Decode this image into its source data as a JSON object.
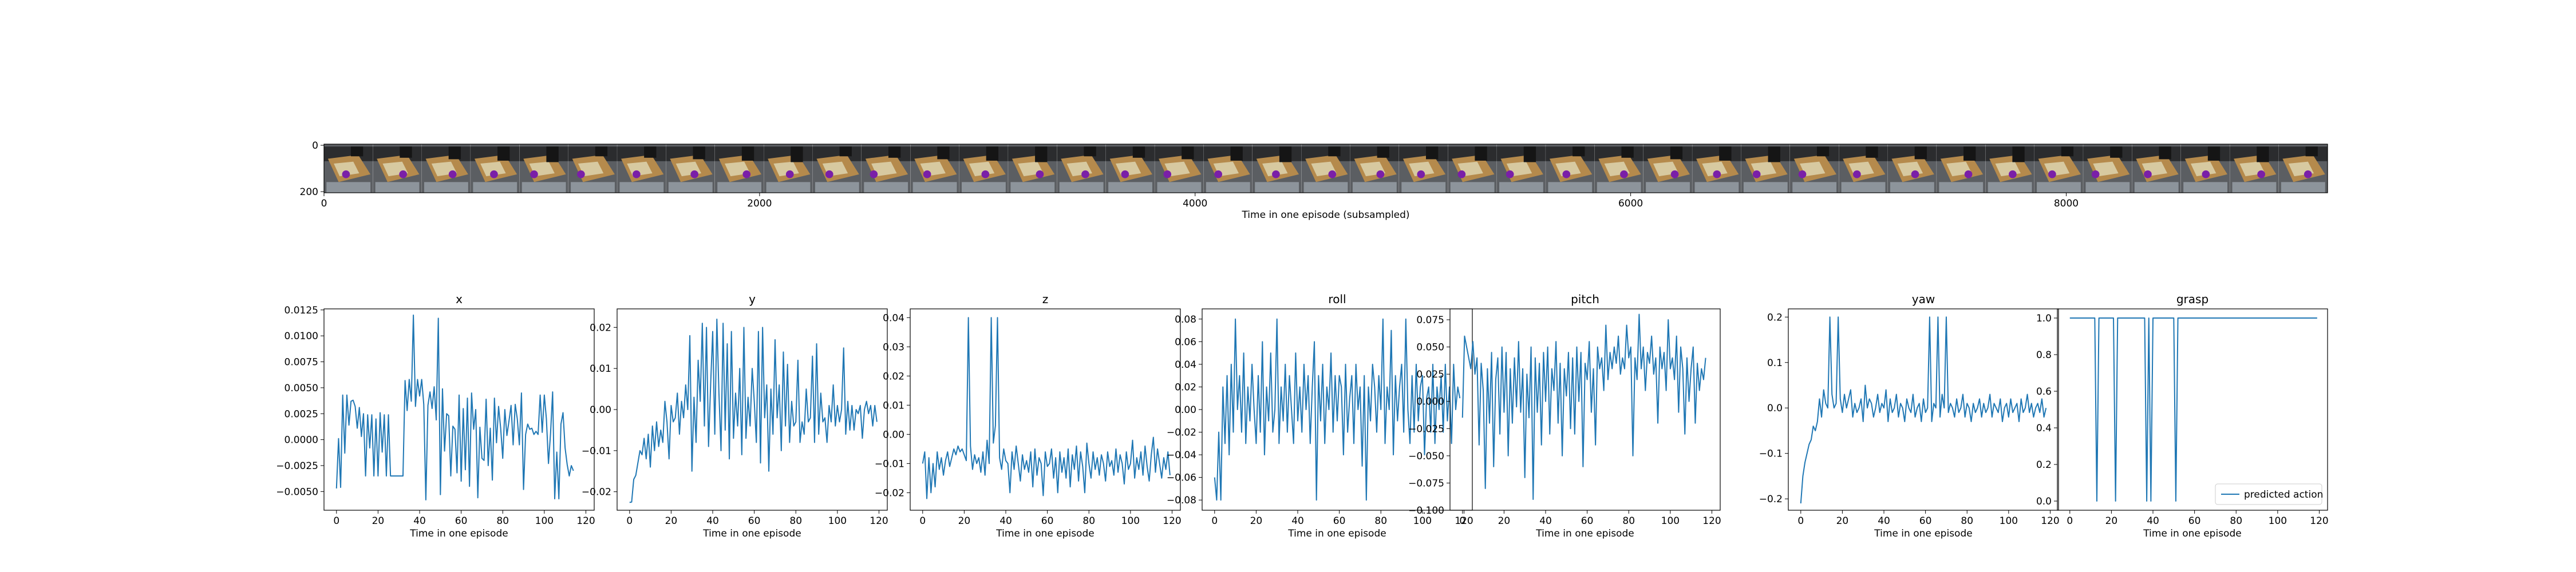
{
  "filmstrip": {
    "xlabel": "Time in one episode (subsampled)",
    "x_ticks": [
      "0",
      "2000",
      "4000",
      "6000",
      "8000"
    ],
    "y_ticks": [
      "0",
      "200"
    ],
    "frame_count": 41
  },
  "legend_label": "predicted action",
  "common_xlabel": "Time in one episode",
  "colors": {
    "line": "#1f77b4",
    "axes": "#000000"
  },
  "chart_data": [
    {
      "type": "line",
      "title": "x",
      "xlabel": "Time in one episode",
      "xlim": [
        -6,
        124
      ],
      "ylim": [
        -0.0068,
        0.0126
      ],
      "x_ticks": [
        "0",
        "20",
        "40",
        "60",
        "80",
        "100",
        "120"
      ],
      "y_ticks": [
        "−0.0050",
        "−0.0025",
        "0.0000",
        "0.0025",
        "0.0050",
        "0.0075",
        "0.0100",
        "0.0125"
      ],
      "series": [
        {
          "values": [
            -0.0047,
            0.0001,
            -0.0046,
            0.0043,
            -0.0013,
            0.0043,
            0.0014,
            0.0037,
            0.0038,
            0.0032,
            0.0011,
            0.0031,
            0.0003,
            0.0025,
            -0.0035,
            0.0024,
            -0.0008,
            0.0024,
            -0.0035,
            0.002,
            -0.0035,
            0.0026,
            -0.0012,
            0.0024,
            -0.0035,
            0.0024,
            -0.0035,
            -0.0035,
            -0.0035,
            -0.0035,
            -0.0035,
            -0.0035,
            -0.0035,
            0.0057,
            0.0028,
            0.0058,
            0.0037,
            0.012,
            0.0032,
            0.0058,
            0.0042,
            0.0058,
            0.0034,
            -0.0058,
            0.0033,
            0.0046,
            0.003,
            0.0051,
            0.0019,
            0.0117,
            -0.0053,
            0.0049,
            -0.0011,
            0.0025,
            0.0023,
            -0.0035,
            0.0013,
            0.001,
            -0.0032,
            0.0043,
            -0.004,
            0.003,
            -0.0029,
            0.004,
            -0.0045,
            0.0045,
            0.001,
            0.0029,
            -0.0056,
            0.0012,
            -0.0018,
            -0.002,
            0.0039,
            -0.0025,
            0.0011,
            -0.0039,
            0.004,
            -0.0003,
            0.0032,
            0.0011,
            -0.0018,
            0.0029,
            0.0004,
            0.0018,
            0.0033,
            -0.0005,
            0.0034,
            0.002,
            -0.0005,
            0.0045,
            -0.0048,
            0.0005,
            0.0015,
            0.001,
            0.0011,
            0.0005,
            0.0008,
            0.0005,
            0.0043,
            0.0007,
            0.0043,
            0.002,
            -0.0023,
            0.0006,
            0.0046,
            -0.0057,
            -0.0012,
            -0.0057,
            0.0015,
            0.0026,
            -0.0008,
            -0.0024,
            -0.0035,
            -0.0025,
            -0.003
          ]
        }
      ]
    },
    {
      "type": "line",
      "title": "y",
      "xlabel": "Time in one episode",
      "xlim": [
        -6,
        124
      ],
      "ylim": [
        -0.0245,
        0.0245
      ],
      "x_ticks": [
        "0",
        "20",
        "40",
        "60",
        "80",
        "100",
        "120"
      ],
      "y_ticks": [
        "−0.02",
        "−0.01",
        "0.00",
        "0.01",
        "0.02"
      ],
      "series": [
        {
          "values": [
            -0.0226,
            -0.0225,
            -0.017,
            -0.016,
            -0.013,
            -0.01,
            -0.011,
            -0.007,
            -0.012,
            -0.006,
            -0.014,
            -0.004,
            -0.01,
            -0.003,
            -0.009,
            -0.005,
            -0.008,
            0.002,
            -0.003,
            -0.012,
            0.001,
            -0.003,
            -0.002,
            0.004,
            -0.006,
            0.002,
            -0.002,
            0.006,
            0.0,
            0.018,
            -0.015,
            0.003,
            -0.008,
            0.012,
            0.002,
            0.021,
            -0.004,
            0.02,
            -0.009,
            0.006,
            0.019,
            -0.006,
            0.022,
            0.004,
            -0.01,
            0.021,
            -0.005,
            0.016,
            -0.012,
            0.019,
            -0.007,
            0.004,
            -0.004,
            0.01,
            -0.011,
            0.02,
            -0.007,
            0.003,
            -0.004,
            0.01,
            0.002,
            -0.008,
            0.019,
            -0.013,
            0.02,
            -0.002,
            0.006,
            -0.015,
            0.005,
            -0.006,
            0.017,
            -0.002,
            0.006,
            -0.01,
            0.014,
            -0.004,
            0.011,
            -0.008,
            0.002,
            -0.004,
            -0.003,
            0.012,
            -0.008,
            -0.003,
            -0.006,
            0.005,
            -0.003,
            -0.002,
            0.013,
            -0.008,
            0.016,
            -0.006,
            0.004,
            -0.003,
            -0.002,
            -0.008,
            0.001,
            -0.003,
            0.006,
            -0.004,
            0.001,
            -0.003,
            0.0,
            0.015,
            -0.006,
            0.002,
            -0.005,
            0.001,
            -0.005,
            0.0,
            -0.001,
            0.001,
            -0.007,
            0.0,
            0.002,
            -0.001,
            0.001,
            -0.004,
            0.001,
            -0.003
          ]
        }
      ]
    },
    {
      "type": "line",
      "title": "z",
      "xlabel": "Time in one episode",
      "xlim": [
        -6,
        124
      ],
      "ylim": [
        -0.026,
        0.043
      ],
      "x_ticks": [
        "0",
        "20",
        "40",
        "60",
        "80",
        "100",
        "120"
      ],
      "y_ticks": [
        "−0.02",
        "−0.01",
        "0.00",
        "0.01",
        "0.02",
        "0.03",
        "0.04"
      ],
      "series": [
        {
          "values": [
            -0.01,
            -0.006,
            -0.022,
            -0.008,
            -0.02,
            -0.01,
            -0.018,
            -0.006,
            -0.012,
            -0.008,
            -0.014,
            -0.009,
            -0.006,
            -0.011,
            -0.008,
            -0.005,
            -0.007,
            -0.004,
            -0.006,
            -0.005,
            -0.007,
            -0.009,
            0.04,
            -0.004,
            -0.012,
            -0.007,
            -0.01,
            -0.008,
            -0.013,
            -0.006,
            -0.014,
            -0.002,
            -0.01,
            0.04,
            -0.003,
            0.003,
            0.04,
            -0.008,
            -0.012,
            -0.005,
            -0.009,
            -0.01,
            -0.02,
            -0.006,
            -0.012,
            -0.004,
            -0.01,
            -0.016,
            -0.007,
            -0.012,
            -0.009,
            -0.013,
            -0.006,
            -0.018,
            -0.005,
            -0.014,
            -0.008,
            -0.01,
            -0.021,
            -0.006,
            -0.011,
            -0.01,
            -0.005,
            -0.015,
            -0.008,
            -0.02,
            -0.006,
            -0.013,
            -0.008,
            -0.015,
            -0.005,
            -0.018,
            -0.007,
            -0.012,
            -0.004,
            -0.016,
            -0.006,
            -0.011,
            -0.02,
            -0.003,
            -0.01,
            -0.015,
            -0.006,
            -0.012,
            -0.008,
            -0.014,
            -0.007,
            -0.01,
            -0.016,
            -0.006,
            -0.011,
            -0.009,
            -0.014,
            -0.005,
            -0.013,
            -0.007,
            -0.01,
            -0.017,
            -0.006,
            -0.012,
            -0.01,
            -0.002,
            -0.015,
            -0.008,
            -0.012,
            -0.006,
            -0.014,
            -0.004,
            -0.011,
            -0.016,
            -0.007,
            -0.001,
            -0.013,
            -0.005,
            -0.01,
            -0.015,
            -0.008,
            -0.012,
            -0.006,
            -0.014
          ]
        }
      ]
    },
    {
      "type": "line",
      "title": "roll",
      "xlabel": "Time in one episode",
      "xlim": [
        -6,
        124
      ],
      "ylim": [
        -0.089,
        0.089
      ],
      "x_ticks": [
        "0",
        "20",
        "40",
        "60",
        "80",
        "100",
        "120"
      ],
      "y_ticks": [
        "−0.08",
        "−0.06",
        "−0.04",
        "−0.02",
        "0.00",
        "0.02",
        "0.04",
        "0.06",
        "0.08"
      ],
      "series": [
        {
          "values": [
            -0.06,
            -0.08,
            -0.02,
            -0.08,
            0.02,
            -0.03,
            0.03,
            -0.04,
            0.04,
            -0.02,
            0.08,
            0.0,
            0.03,
            -0.02,
            0.05,
            -0.03,
            0.02,
            -0.01,
            0.04,
            0.0,
            -0.03,
            0.03,
            -0.02,
            0.06,
            -0.04,
            0.02,
            -0.01,
            0.05,
            -0.02,
            0.0,
            0.08,
            -0.03,
            0.02,
            -0.01,
            0.04,
            -0.02,
            0.03,
            0.0,
            -0.03,
            0.05,
            -0.01,
            0.02,
            -0.02,
            0.04,
            0.0,
            0.03,
            -0.03,
            0.02,
            0.06,
            -0.08,
            0.03,
            -0.01,
            0.04,
            -0.03,
            0.02,
            0.0,
            0.05,
            -0.02,
            0.03,
            -0.01,
            0.03,
            0.02,
            -0.04,
            0.04,
            -0.02,
            0.01,
            0.03,
            -0.03,
            0.04,
            0.0,
            0.02,
            -0.05,
            0.03,
            -0.08,
            0.02,
            -0.01,
            0.04,
            0.02,
            -0.02,
            0.03,
            0.0,
            0.08,
            -0.03,
            0.02,
            0.0,
            0.07,
            -0.04,
            0.03,
            -0.01,
            0.02,
            0.04,
            -0.02,
            0.08,
            0.0,
            -0.03,
            0.03,
            -0.02,
            0.04,
            -0.01,
            0.02,
            0.03,
            -0.04,
            0.01,
            0.02,
            -0.02,
            0.04,
            -0.03,
            0.02,
            0.0,
            0.03,
            -0.02,
            0.04,
            -0.01,
            0.02,
            -0.03,
            0.04,
            0.0,
            0.02,
            0.01
          ]
        }
      ]
    },
    {
      "type": "line",
      "title": "pitch",
      "xlabel": "Time in one episode",
      "xlim": [
        -6,
        124
      ],
      "ylim": [
        -0.1,
        0.085
      ],
      "x_ticks": [
        "0",
        "20",
        "40",
        "60",
        "80",
        "100",
        "120"
      ],
      "y_ticks": [
        "−0.100",
        "−0.075",
        "−0.050",
        "−0.025",
        "0.000",
        "0.025",
        "0.050",
        "0.075"
      ],
      "series": [
        {
          "values": [
            -0.015,
            0.06,
            0.05,
            0.04,
            0.03,
            0.055,
            0.025,
            0.04,
            -0.04,
            0.035,
            0.01,
            -0.08,
            0.03,
            -0.02,
            0.045,
            -0.06,
            0.02,
            0.04,
            -0.03,
            0.05,
            -0.01,
            0.045,
            -0.05,
            0.03,
            -0.02,
            0.04,
            -0.005,
            0.055,
            -0.01,
            0.03,
            -0.07,
            0.025,
            -0.015,
            0.05,
            -0.09,
            0.04,
            -0.01,
            0.035,
            -0.04,
            0.045,
            0.0,
            0.05,
            -0.03,
            0.03,
            0.01,
            0.055,
            -0.02,
            0.035,
            -0.05,
            0.03,
            0.005,
            0.045,
            -0.025,
            0.04,
            -0.03,
            0.05,
            0.0,
            0.045,
            -0.06,
            0.035,
            0.02,
            0.055,
            -0.01,
            0.03,
            -0.04,
            0.05,
            0.03,
            0.04,
            0.01,
            0.07,
            0.02,
            0.045,
            0.03,
            0.05,
            0.035,
            0.06,
            0.025,
            0.04,
            0.03,
            0.07,
            0.04,
            0.05,
            -0.05,
            0.04,
            0.02,
            0.08,
            0.03,
            0.05,
            0.01,
            0.045,
            0.035,
            0.06,
            0.025,
            0.04,
            -0.02,
            0.05,
            0.03,
            0.045,
            0.01,
            0.075,
            0.03,
            0.04,
            0.02,
            0.06,
            -0.01,
            0.05,
            0.03,
            -0.03,
            0.04,
            0.0,
            0.03,
            0.05,
            -0.02,
            0.035,
            0.01,
            0.03,
            0.02,
            0.04
          ]
        }
      ]
    },
    {
      "type": "line",
      "title": "yaw",
      "xlabel": "Time in one episode",
      "xlim": [
        -6,
        124
      ],
      "ylim": [
        -0.225,
        0.218
      ],
      "x_ticks": [
        "0",
        "20",
        "40",
        "60",
        "80",
        "100",
        "120"
      ],
      "y_ticks": [
        "−0.2",
        "−0.1",
        "0.0",
        "0.1",
        "0.2"
      ],
      "series": [
        {
          "values": [
            -0.21,
            -0.15,
            -0.12,
            -0.1,
            -0.08,
            -0.07,
            -0.04,
            -0.05,
            -0.03,
            0.02,
            -0.02,
            0.04,
            0.01,
            0.0,
            0.2,
            0.03,
            0.0,
            0.01,
            0.2,
            0.02,
            -0.01,
            0.03,
            0.0,
            0.02,
            0.04,
            -0.02,
            0.01,
            -0.01,
            0.0,
            0.02,
            -0.03,
            0.05,
            0.0,
            0.02,
            0.01,
            -0.02,
            0.0,
            0.03,
            -0.01,
            0.01,
            0.0,
            0.04,
            -0.03,
            0.02,
            -0.01,
            0.0,
            0.03,
            -0.02,
            0.01,
            0.0,
            -0.03,
            0.02,
            0.0,
            -0.01,
            0.03,
            -0.02,
            0.0,
            0.01,
            -0.03,
            0.02,
            -0.01,
            0.0,
            0.2,
            -0.03,
            0.01,
            0.0,
            0.2,
            -0.02,
            0.03,
            0.0,
            0.2,
            -0.01,
            0.01,
            0.0,
            -0.02,
            0.02,
            -0.01,
            0.0,
            0.03,
            -0.02,
            0.01,
            0.0,
            -0.03,
            0.01,
            -0.01,
            0.0,
            0.02,
            -0.02,
            0.01,
            -0.01,
            0.0,
            0.03,
            -0.02,
            0.01,
            0.0,
            -0.01,
            0.02,
            -0.03,
            0.0,
            0.01,
            -0.02,
            0.02,
            -0.01,
            0.0,
            0.01,
            -0.03,
            0.02,
            -0.01,
            0.0,
            0.03,
            -0.01,
            0.01,
            -0.02,
            0.0,
            0.01,
            -0.01,
            0.02,
            -0.02,
            0.0
          ]
        }
      ]
    },
    {
      "type": "line",
      "title": "grasp",
      "xlabel": "Time in one episode",
      "xlim": [
        -6,
        124
      ],
      "ylim": [
        -0.05,
        1.05
      ],
      "x_ticks": [
        "0",
        "20",
        "40",
        "60",
        "80",
        "100",
        "120"
      ],
      "y_ticks": [
        "0.0",
        "0.2",
        "0.4",
        "0.6",
        "0.8",
        "1.0"
      ],
      "legend": {
        "position": "lower right",
        "entries": [
          "predicted action"
        ]
      },
      "series": [
        {
          "name": "predicted action",
          "values": [
            1,
            1,
            1,
            1,
            1,
            1,
            1,
            1,
            1,
            1,
            1,
            1,
            1,
            0,
            1,
            1,
            1,
            1,
            1,
            1,
            1,
            1,
            0,
            1,
            1,
            1,
            1,
            1,
            1,
            1,
            1,
            1,
            1,
            1,
            1,
            1,
            1,
            0,
            1,
            0,
            1,
            1,
            1,
            1,
            1,
            1,
            1,
            1,
            1,
            1,
            1,
            0,
            1,
            1,
            1,
            1,
            1,
            1,
            1,
            1,
            1,
            1,
            1,
            1,
            1,
            1,
            1,
            1,
            1,
            1,
            1,
            1,
            1,
            1,
            1,
            1,
            1,
            1,
            1,
            1,
            1,
            1,
            1,
            1,
            1,
            1,
            1,
            1,
            1,
            1,
            1,
            1,
            1,
            1,
            1,
            1,
            1,
            1,
            1,
            1,
            1,
            1,
            1,
            1,
            1,
            1,
            1,
            1,
            1,
            1,
            1,
            1,
            1,
            1,
            1,
            1,
            1,
            1,
            1,
            1
          ]
        }
      ]
    }
  ]
}
